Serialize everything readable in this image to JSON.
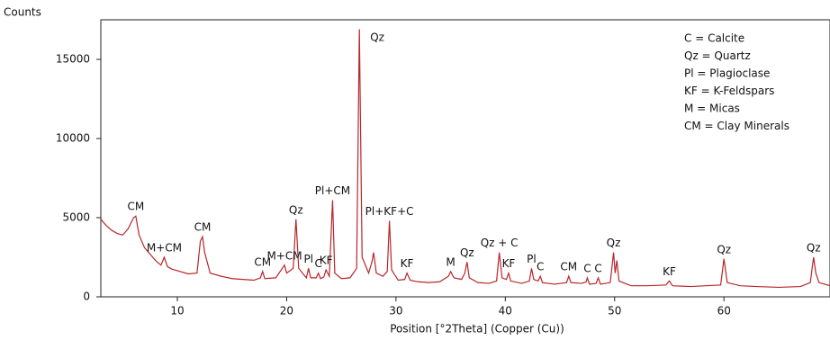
{
  "chart_data": {
    "type": "line",
    "y_label": "Counts",
    "x_label": "Position [°2Theta] (Copper (Cu))",
    "xlim": [
      3,
      69.7
    ],
    "ylim": [
      0,
      17500
    ],
    "xticks": [
      10,
      20,
      30,
      40,
      50,
      60
    ],
    "yticks": [
      0,
      5000,
      10000,
      15000
    ],
    "series": [
      {
        "color": "#b8262b",
        "x": [
          3,
          3.5,
          4,
          4.5,
          5,
          5.5,
          6,
          6.2,
          6.5,
          7,
          7.5,
          8,
          8.5,
          8.8,
          9.1,
          9.5,
          10,
          11,
          11.8,
          12.1,
          12.3,
          12.5,
          13,
          14,
          15,
          16,
          17,
          17.6,
          17.8,
          18,
          19,
          19.6,
          19.8,
          20,
          20.6,
          20.85,
          21.1,
          21.8,
          22.0,
          22.2,
          22.7,
          22.9,
          23.1,
          23.4,
          23.6,
          23.9,
          24.2,
          24.4,
          25,
          25.8,
          26.4,
          26.65,
          26.9,
          27.5,
          27.8,
          27.95,
          28.2,
          28.8,
          29.2,
          29.4,
          29.6,
          30.2,
          30.8,
          31,
          31.3,
          32,
          33,
          34,
          34.8,
          35,
          35.3,
          36,
          36.3,
          36.5,
          36.7,
          37.5,
          38.5,
          39.2,
          39.45,
          39.7,
          40.1,
          40.3,
          40.5,
          41.5,
          42.2,
          42.4,
          42.6,
          43,
          43.2,
          43.4,
          44.5,
          45.6,
          45.8,
          46,
          47,
          47.4,
          47.5,
          47.7,
          48.3,
          48.5,
          48.7,
          49.6,
          49.9,
          50.05,
          50.2,
          50.4,
          51.5,
          53,
          54.7,
          55,
          55.3,
          57,
          59.7,
          60,
          60.3,
          61.5,
          63,
          65,
          67,
          67.9,
          68.1,
          68.2,
          68.4,
          68.7,
          69.7
        ],
        "values": [
          4900,
          4500,
          4200,
          4000,
          3900,
          4300,
          5000,
          5100,
          3900,
          3100,
          2700,
          2300,
          2000,
          2500,
          1900,
          1750,
          1650,
          1450,
          1500,
          3500,
          3800,
          2800,
          1500,
          1300,
          1150,
          1100,
          1050,
          1200,
          1600,
          1150,
          1200,
          1800,
          2000,
          1500,
          1800,
          4900,
          1800,
          1200,
          1800,
          1200,
          1200,
          1500,
          1150,
          1250,
          1700,
          1300,
          6100,
          1500,
          1150,
          1200,
          1800,
          16900,
          2500,
          1500,
          2200,
          2800,
          1500,
          1300,
          1600,
          4800,
          1700,
          1050,
          1100,
          1500,
          1050,
          950,
          900,
          950,
          1300,
          1600,
          1200,
          1100,
          1500,
          2200,
          1200,
          900,
          850,
          1000,
          2800,
          1200,
          1100,
          1500,
          1000,
          850,
          1000,
          1800,
          1100,
          1000,
          1300,
          900,
          800,
          900,
          1300,
          900,
          850,
          950,
          1200,
          800,
          850,
          1200,
          800,
          900,
          2800,
          1500,
          2300,
          1000,
          700,
          700,
          750,
          1000,
          700,
          650,
          750,
          2400,
          900,
          700,
          650,
          600,
          650,
          900,
          2000,
          2500,
          1500,
          900,
          700
        ]
      }
    ],
    "annotations": [
      {
        "text": "CM",
        "x": 6.2
      },
      {
        "text": "M+CM",
        "x": 8.8
      },
      {
        "text": "CM",
        "x": 12.3
      },
      {
        "text": "CM",
        "x": 17.8
      },
      {
        "text": "M+CM",
        "x": 19.8
      },
      {
        "text": "Qz",
        "x": 20.85
      },
      {
        "text": "Pl",
        "x": 22.0
      },
      {
        "text": "C",
        "x": 22.9
      },
      {
        "text": "KF",
        "x": 23.6
      },
      {
        "text": "Pl+CM",
        "x": 24.2
      },
      {
        "text": "Qz",
        "x": 26.65
      },
      {
        "text": "Pl+KF+C",
        "x": 29.4
      },
      {
        "text": "KF",
        "x": 31
      },
      {
        "text": "M",
        "x": 35
      },
      {
        "text": "Qz",
        "x": 36.5
      },
      {
        "text": "Qz + C",
        "x": 39.45
      },
      {
        "text": "KF",
        "x": 40.3
      },
      {
        "text": "Pl",
        "x": 42.4
      },
      {
        "text": "C",
        "x": 43.2
      },
      {
        "text": "CM",
        "x": 45.8
      },
      {
        "text": "C",
        "x": 47.5
      },
      {
        "text": "C",
        "x": 48.5
      },
      {
        "text": "Qz",
        "x": 49.9
      },
      {
        "text": "KF",
        "x": 55
      },
      {
        "text": "Qz",
        "x": 60
      },
      {
        "text": "Qz",
        "x": 68.2
      }
    ],
    "legend_notes": [
      "C = Calcite",
      "Qz = Quartz",
      "Pl = Plagioclase",
      "KF = K-Feldspars",
      "M = Micas",
      "CM = Clay Minerals"
    ]
  }
}
